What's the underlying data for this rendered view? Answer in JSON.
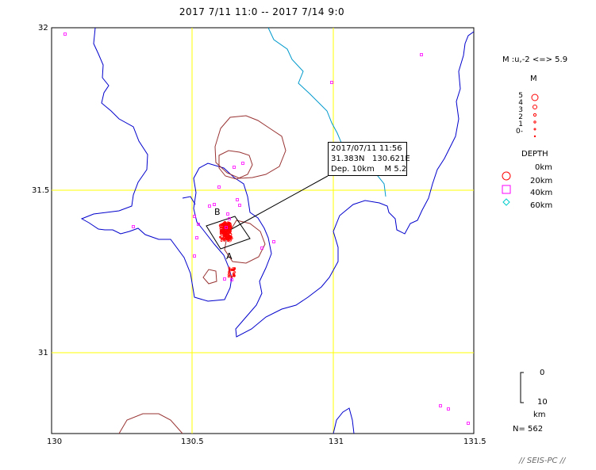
{
  "title": "2017 7/11 11:0 -- 2017 7/14 9:0",
  "axes": {
    "x_ticks": [
      "130",
      "130.5",
      "131",
      "131.5"
    ],
    "y_ticks": [
      "32",
      "31.5",
      "31"
    ],
    "xlim": [
      130.0,
      131.5
    ],
    "ylim": [
      30.75,
      32.0
    ]
  },
  "event_box": {
    "line1": "2017/07/11 11:56",
    "line2": "31.383N   130.621E",
    "line3": "Dep. 10km    M 5.2"
  },
  "section_labels": {
    "a": "A",
    "b": "B"
  },
  "legend": {
    "mag_range": "M :u,-2 <=> 5.9",
    "mag_title": "M",
    "mag_levels": [
      "5",
      "4",
      "3",
      "2",
      "1",
      "0-"
    ],
    "depth_title": "DEPTH",
    "depths": [
      "0km",
      "20km",
      "40km",
      "60km"
    ],
    "depth_scale_top": "0",
    "depth_scale_bottom": "10",
    "depth_scale_unit": "km",
    "count": "N= 562"
  },
  "footer": "// SEIS-PC //",
  "colors": {
    "coast": "#0000cc",
    "river": "#0099cc",
    "caldera": "#993333",
    "grid": "#ffff00",
    "quake": "#ff0000",
    "deep_quake": "#ff00ff",
    "deepest_quake": "#00cccc"
  }
}
